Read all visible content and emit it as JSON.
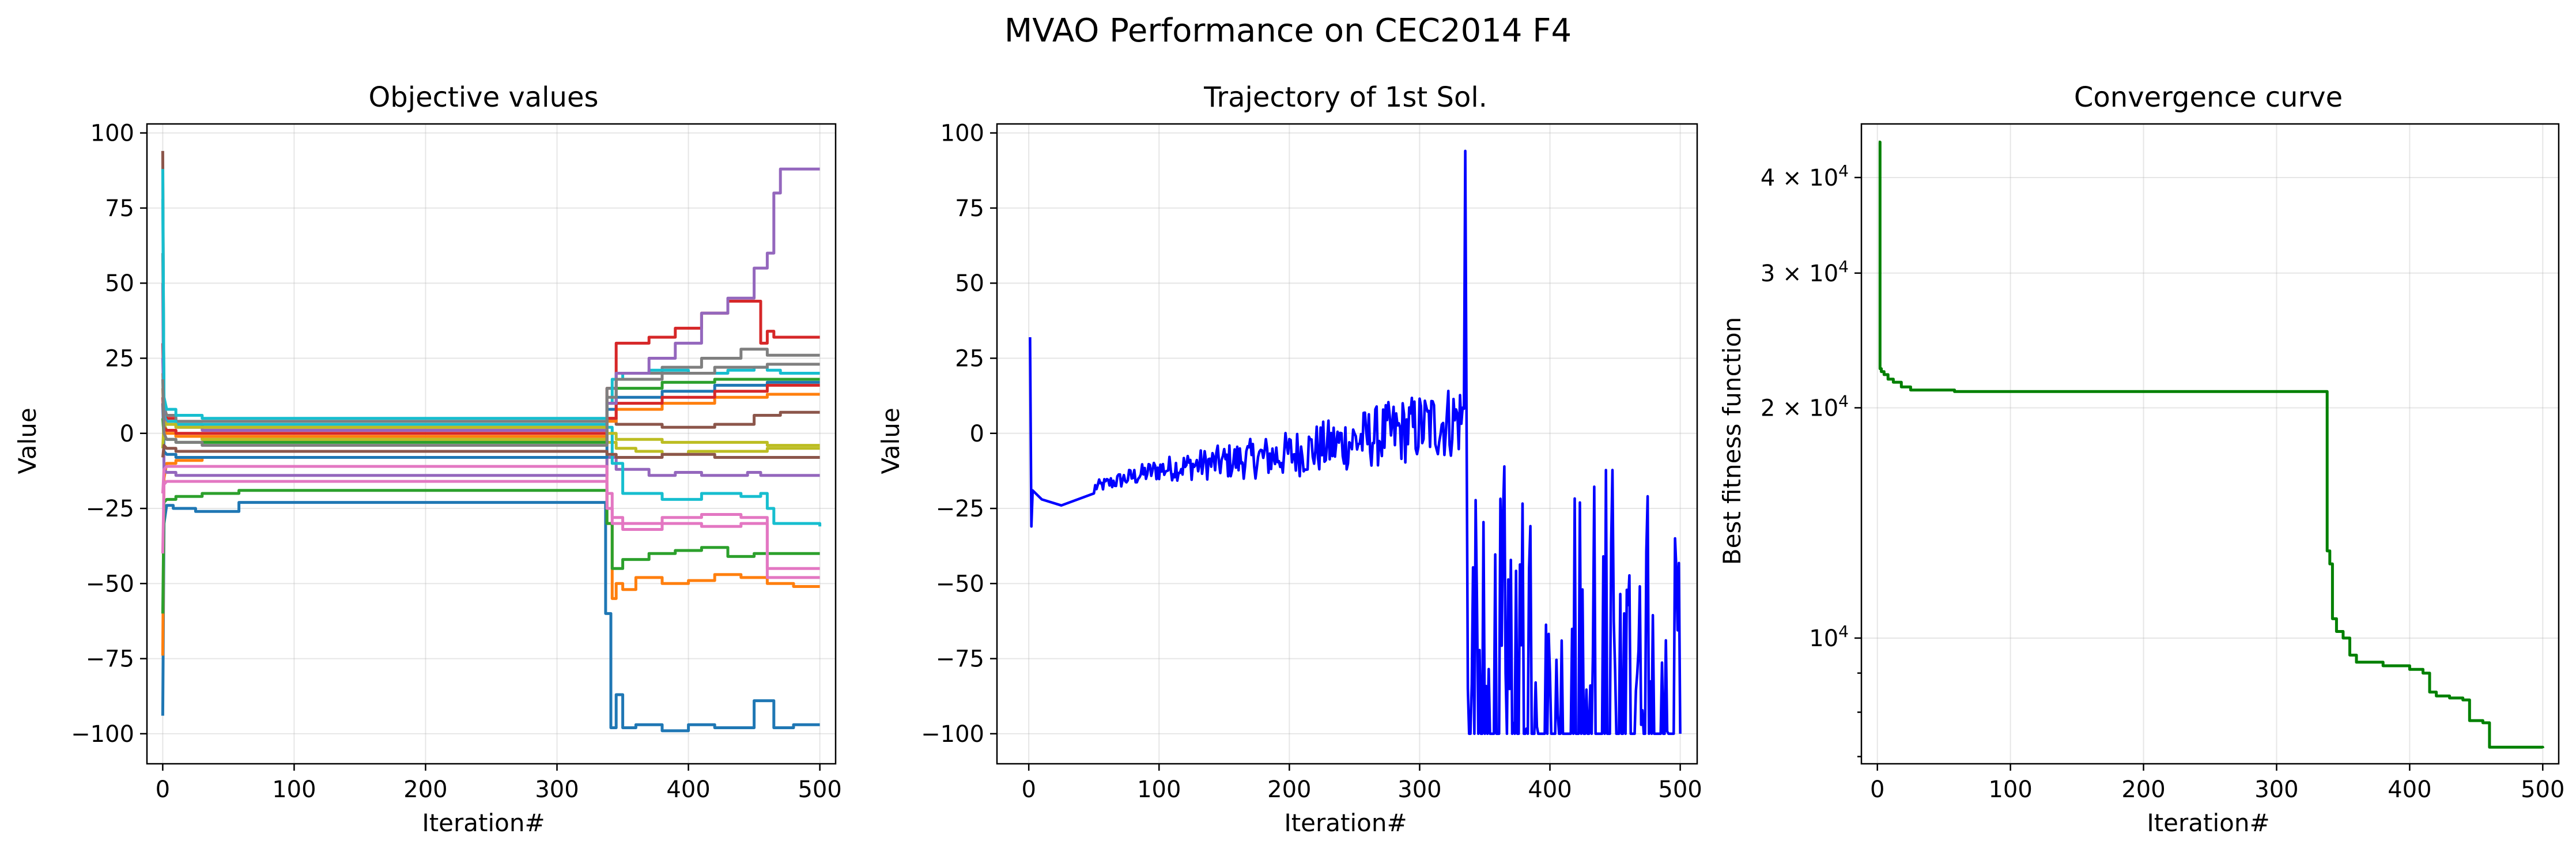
{
  "figure": {
    "title": "MVAO Performance on CEC2014 F4"
  },
  "chart_data": [
    {
      "type": "line",
      "title": "Objective values",
      "xlabel": "Iteration#",
      "ylabel": "Value",
      "xlim": [
        -12,
        512
      ],
      "ylim": [
        -110,
        103
      ],
      "xticks": [
        0,
        100,
        200,
        300,
        400,
        500
      ],
      "xtick_labels": [
        "0",
        "100",
        "200",
        "300",
        "400",
        "500"
      ],
      "yticks": [
        -100,
        -75,
        -50,
        -25,
        0,
        25,
        50,
        75,
        100
      ],
      "ytick_labels": [
        "−100",
        "−75",
        "−50",
        "−25",
        "0",
        "25",
        "50",
        "75",
        "100"
      ],
      "grid": true,
      "series": [
        {
          "color": "#1f77b4",
          "x": [
            0,
            1,
            3,
            8,
            15,
            25,
            58,
            335,
            337,
            341,
            345,
            350,
            360,
            380,
            400,
            420,
            450,
            465,
            480,
            500
          ],
          "values": [
            -94,
            -30,
            -24,
            -25,
            -25,
            -26,
            -23,
            -23,
            -60,
            -98,
            -87,
            -98,
            -97,
            -99,
            -97,
            -98,
            -89,
            -98,
            -97,
            -97
          ]
        },
        {
          "color": "#ff7f0e",
          "x": [
            0,
            1,
            3,
            10,
            30,
            58,
            335,
            338,
            342,
            345,
            350,
            360,
            380,
            400,
            420,
            440,
            460,
            480,
            500
          ],
          "values": [
            -74,
            -15,
            -10,
            -9,
            -8,
            -8,
            -8,
            -30,
            -55,
            -50,
            -52,
            -48,
            -50,
            -49,
            -47,
            -48,
            -50,
            -51,
            -51
          ]
        },
        {
          "color": "#2ca02c",
          "x": [
            0,
            1,
            3,
            10,
            30,
            58,
            335,
            338,
            342,
            350,
            370,
            390,
            410,
            430,
            450,
            470,
            500
          ],
          "values": [
            -60,
            -23,
            -22,
            -21,
            -20,
            -19,
            -19,
            -30,
            -45,
            -42,
            -40,
            -39,
            -38,
            -41,
            -40,
            -40,
            -40
          ]
        },
        {
          "color": "#d62728",
          "x": [
            0,
            1,
            3,
            10,
            30,
            58,
            335,
            338,
            345,
            370,
            390,
            410,
            430,
            445,
            455,
            460,
            465,
            500
          ],
          "values": [
            30,
            8,
            5,
            3,
            2,
            2,
            2,
            15,
            30,
            32,
            35,
            40,
            44,
            44,
            30,
            34,
            32,
            32
          ]
        },
        {
          "color": "#9467bd",
          "x": [
            0,
            1,
            3,
            10,
            30,
            58,
            335,
            338,
            345,
            370,
            390,
            410,
            430,
            445,
            455,
            465,
            470,
            475,
            500
          ],
          "values": [
            50,
            -12,
            -13,
            -14,
            -14,
            -14,
            -14,
            -8,
            -12,
            -14,
            -13,
            -14,
            -14,
            -13,
            -14,
            -14,
            -14,
            -14,
            -14
          ]
        },
        {
          "color": "#8c564b",
          "x": [
            0,
            1,
            3,
            10,
            30,
            58,
            335,
            338,
            345,
            380,
            420,
            450,
            470,
            500
          ],
          "values": [
            94,
            3,
            1,
            -1,
            -2,
            -2,
            -2,
            5,
            3,
            2,
            3,
            6,
            7,
            7
          ]
        },
        {
          "color": "#e377c2",
          "x": [
            0,
            1,
            3,
            10,
            30,
            58,
            335,
            338,
            342,
            350,
            380,
            410,
            440,
            460,
            500
          ],
          "values": [
            -40,
            -17,
            -16,
            -16,
            -16,
            -16,
            -16,
            -25,
            -30,
            -32,
            -30,
            -31,
            -30,
            -45,
            -45
          ]
        },
        {
          "color": "#7f7f7f",
          "x": [
            0,
            1,
            3,
            10,
            30,
            58,
            335,
            338,
            345,
            380,
            410,
            440,
            460,
            470,
            500
          ],
          "values": [
            60,
            9,
            6,
            4,
            4,
            4,
            4,
            15,
            20,
            22,
            25,
            28,
            26,
            26,
            26
          ]
        },
        {
          "color": "#bcbd22",
          "x": [
            0,
            1,
            3,
            10,
            30,
            58,
            335,
            338,
            345,
            360,
            380,
            400,
            420,
            440,
            460,
            500
          ],
          "values": [
            20,
            3,
            1,
            -1,
            -2,
            -2,
            -2,
            -3,
            -5,
            -6,
            -7,
            -6,
            -6,
            -6,
            -5,
            -5
          ]
        },
        {
          "color": "#17becf",
          "x": [
            0,
            1,
            3,
            10,
            30,
            58,
            335,
            338,
            342,
            350,
            370,
            400,
            430,
            450,
            460,
            470,
            500
          ],
          "values": [
            88,
            6,
            4,
            3,
            3,
            3,
            3,
            10,
            18,
            20,
            21,
            20,
            21,
            22,
            21,
            20,
            20
          ]
        },
        {
          "color": "#1f77b4",
          "x": [
            0,
            1,
            3,
            10,
            30,
            58,
            335,
            338,
            345,
            380,
            420,
            460,
            500
          ],
          "values": [
            10,
            -6,
            -7,
            -8,
            -8,
            -8,
            -8,
            8,
            12,
            14,
            16,
            17,
            17
          ]
        },
        {
          "color": "#ff7f0e",
          "x": [
            0,
            1,
            3,
            10,
            30,
            58,
            335,
            338,
            345,
            380,
            420,
            460,
            500
          ],
          "values": [
            15,
            1,
            0,
            -1,
            -1,
            -1,
            -1,
            4,
            8,
            10,
            12,
            13,
            13
          ]
        },
        {
          "color": "#2ca02c",
          "x": [
            0,
            1,
            3,
            10,
            30,
            58,
            335,
            338,
            345,
            380,
            420,
            460,
            500
          ],
          "values": [
            5,
            -1,
            -2,
            -3,
            -3,
            -3,
            -3,
            10,
            15,
            17,
            18,
            18,
            18
          ]
        },
        {
          "color": "#d62728",
          "x": [
            0,
            1,
            3,
            10,
            30,
            58,
            335,
            338,
            345,
            380,
            420,
            460,
            500
          ],
          "values": [
            12,
            2,
            1,
            0,
            0,
            0,
            0,
            5,
            10,
            12,
            14,
            16,
            16
          ]
        },
        {
          "color": "#9467bd",
          "x": [
            0,
            1,
            3,
            10,
            30,
            58,
            335,
            338,
            345,
            370,
            390,
            410,
            430,
            450,
            460,
            465,
            470,
            500
          ],
          "values": [
            25,
            5,
            3,
            2,
            1,
            1,
            1,
            10,
            20,
            25,
            30,
            40,
            45,
            55,
            60,
            80,
            88,
            88
          ]
        },
        {
          "color": "#e377c2",
          "x": [
            0,
            1,
            3,
            10,
            30,
            58,
            335,
            338,
            342,
            350,
            380,
            410,
            440,
            460,
            500
          ],
          "values": [
            -20,
            -12,
            -11,
            -11,
            -11,
            -11,
            -11,
            -20,
            -28,
            -30,
            -28,
            -27,
            -28,
            -48,
            -48
          ]
        },
        {
          "color": "#17becf",
          "x": [
            0,
            1,
            3,
            10,
            30,
            58,
            335,
            338,
            342,
            350,
            380,
            410,
            440,
            455,
            460,
            465,
            500
          ],
          "values": [
            78,
            12,
            8,
            6,
            5,
            5,
            5,
            2,
            -10,
            -20,
            -22,
            -20,
            -21,
            -20,
            -25,
            -30,
            -31
          ]
        },
        {
          "color": "#bcbd22",
          "x": [
            0,
            1,
            3,
            10,
            30,
            58,
            335,
            338,
            345,
            380,
            420,
            460,
            500
          ],
          "values": [
            -5,
            4,
            3,
            2,
            2,
            2,
            2,
            0,
            -2,
            -3,
            -3,
            -4,
            -4
          ]
        },
        {
          "color": "#7f7f7f",
          "x": [
            0,
            1,
            3,
            10,
            30,
            58,
            335,
            338,
            345,
            380,
            420,
            460,
            500
          ],
          "values": [
            18,
            0,
            -2,
            -3,
            -4,
            -4,
            -4,
            12,
            18,
            20,
            22,
            23,
            23
          ]
        },
        {
          "color": "#8c564b",
          "x": [
            0,
            1,
            3,
            10,
            30,
            58,
            335,
            338,
            345,
            380,
            420,
            460,
            500
          ],
          "values": [
            -8,
            -4,
            -5,
            -6,
            -6,
            -6,
            -6,
            -7,
            -8,
            -7,
            -8,
            -8,
            -8
          ]
        }
      ]
    },
    {
      "type": "line",
      "title": "Trajectory of 1st Sol.",
      "xlabel": "Iteration#",
      "ylabel": "Value",
      "xlim": [
        -24.4,
        513
      ],
      "ylim": [
        -110,
        103
      ],
      "xticks": [
        0,
        100,
        200,
        300,
        400,
        500
      ],
      "xtick_labels": [
        "0",
        "100",
        "200",
        "300",
        "400",
        "500"
      ],
      "yticks": [
        -100,
        -75,
        -50,
        -25,
        0,
        25,
        50,
        75,
        100
      ],
      "ytick_labels": [
        "−100",
        "−75",
        "−50",
        "−25",
        "0",
        "25",
        "50",
        "75",
        "100"
      ],
      "grid": true,
      "color": "#0000ff",
      "trajectory_model": {
        "start": [
          [
            1,
            32
          ],
          [
            2,
            -31
          ],
          [
            3,
            -19
          ],
          [
            10,
            -22
          ],
          [
            25,
            -24
          ],
          [
            50,
            -20
          ]
        ],
        "trend_until_334": [
          [
            50,
            -18
          ],
          [
            100,
            -12
          ],
          [
            200,
            -7
          ],
          [
            300,
            2
          ],
          [
            334,
            5
          ]
        ],
        "peak": [
          [
            335,
            94
          ],
          [
            337,
            -85
          ]
        ],
        "after_336": "oscillates between -100 and about -10"
      }
    },
    {
      "type": "line",
      "title": "Convergence curve",
      "xlabel": "Iteration#",
      "ylabel": "Best fitness function",
      "xlim": [
        -12,
        512
      ],
      "yscale": "log",
      "ylim": [
        6850,
        47000
      ],
      "xticks": [
        0,
        100,
        200,
        300,
        400,
        500
      ],
      "xtick_labels": [
        "0",
        "100",
        "200",
        "300",
        "400",
        "500"
      ],
      "yticks_major": [
        {
          "value": 10000,
          "label": "10",
          "exp": "4"
        },
        {
          "value": 20000,
          "label": "2 × 10",
          "exp": "4"
        },
        {
          "value": 30000,
          "label": "3 × 10",
          "exp": "4"
        },
        {
          "value": 40000,
          "label": "4 × 10",
          "exp": "4"
        }
      ],
      "yticks_minor": [
        6000,
        7000,
        8000,
        9000
      ],
      "grid": true,
      "color": "#008000",
      "x": [
        1,
        2,
        3,
        5,
        8,
        12,
        18,
        25,
        58,
        335,
        338,
        340,
        342,
        345,
        350,
        355,
        360,
        380,
        400,
        410,
        415,
        420,
        430,
        440,
        445,
        455,
        460,
        500
      ],
      "values": [
        44500,
        22500,
        22300,
        22100,
        21800,
        21600,
        21300,
        21100,
        21000,
        21000,
        13000,
        12500,
        10600,
        10200,
        10000,
        9500,
        9300,
        9200,
        9100,
        9000,
        8500,
        8400,
        8350,
        8300,
        7800,
        7750,
        7200,
        7180
      ]
    }
  ]
}
